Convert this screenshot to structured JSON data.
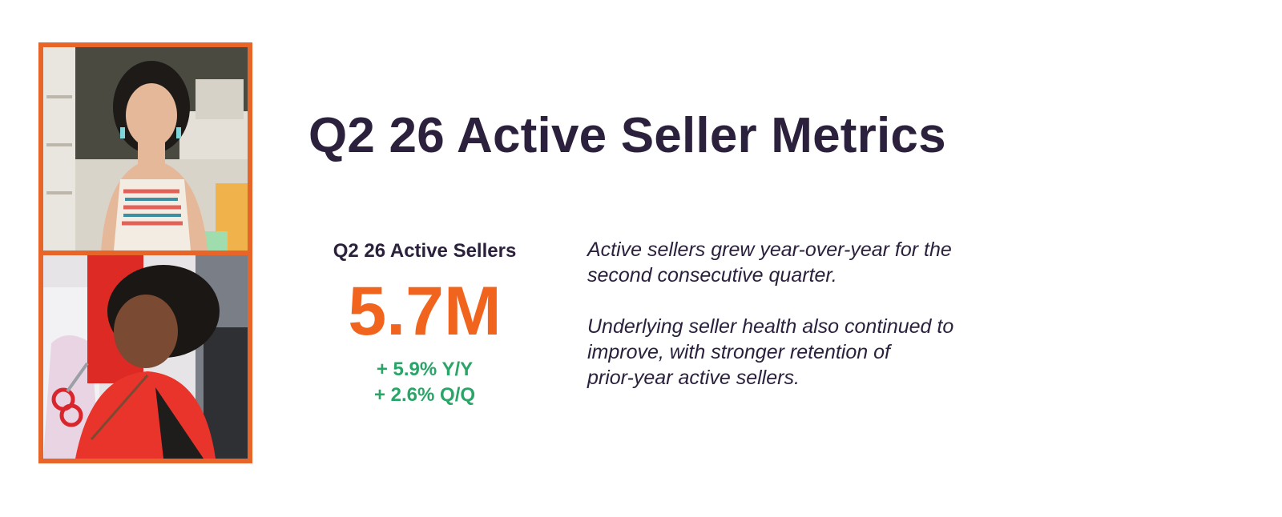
{
  "page": {
    "title": "Q2 26 Active Seller Metrics"
  },
  "metric": {
    "label": "Q2 26 Active Sellers",
    "value": "5.7M",
    "yoy_change": "+ 5.9% Y/Y",
    "qoq_change": "+ 2.6% Q/Q"
  },
  "commentary": {
    "paragraph_1": "Active sellers grew year-over-year for the\nsecond consecutive quarter.",
    "paragraph_2": "Underlying seller health also continued to\nimprove, with stronger retention of\nprior-year active sellers."
  },
  "photos": [
    {
      "name": "seller-photo-craft-studio"
    },
    {
      "name": "seller-photo-tailor"
    }
  ],
  "colors": {
    "frame": "#e8652a",
    "title": "#2b213d",
    "metric_value": "#f1641e",
    "growth": "#2aa568"
  }
}
